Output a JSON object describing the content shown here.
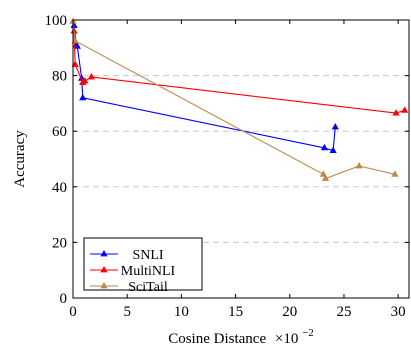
{
  "chart_data": {
    "type": "line",
    "xlabel": "Cosine Distance",
    "xlabel_multiplier": "×10",
    "xlabel_exponent": "−2",
    "ylabel": "Accuracy",
    "xlim": [
      0,
      31
    ],
    "ylim": [
      0,
      100
    ],
    "xticks": [
      0,
      5,
      10,
      15,
      20,
      25,
      30
    ],
    "yticks": [
      0,
      20,
      40,
      60,
      80,
      100
    ],
    "grid": "horizontal dashed",
    "legend_position": "bottom-left",
    "series": [
      {
        "name": "SNLI",
        "color": "#0000ff",
        "marker": "triangle",
        "points": [
          [
            0.1,
            98
          ],
          [
            0.3,
            91
          ],
          [
            0.4,
            90.5
          ],
          [
            0.8,
            79
          ],
          [
            0.9,
            72
          ],
          [
            23.2,
            54
          ],
          [
            24.0,
            53
          ],
          [
            24.2,
            61.5
          ]
        ]
      },
      {
        "name": "MultiNLI",
        "color": "#ff0000",
        "marker": "triangle",
        "points": [
          [
            0.1,
            96
          ],
          [
            0.2,
            84
          ],
          [
            0.9,
            77.5
          ],
          [
            1.1,
            78
          ],
          [
            1.7,
            79.5
          ],
          [
            29.8,
            66.5
          ],
          [
            30.6,
            67.5
          ]
        ]
      },
      {
        "name": "SciTail",
        "color": "#bc8a4f",
        "marker": "triangle",
        "points": [
          [
            0.0,
            99.5
          ],
          [
            0.2,
            92.5
          ],
          [
            23.1,
            44.5
          ],
          [
            23.3,
            43
          ],
          [
            26.4,
            47.5
          ],
          [
            29.7,
            44.5
          ]
        ]
      }
    ]
  }
}
